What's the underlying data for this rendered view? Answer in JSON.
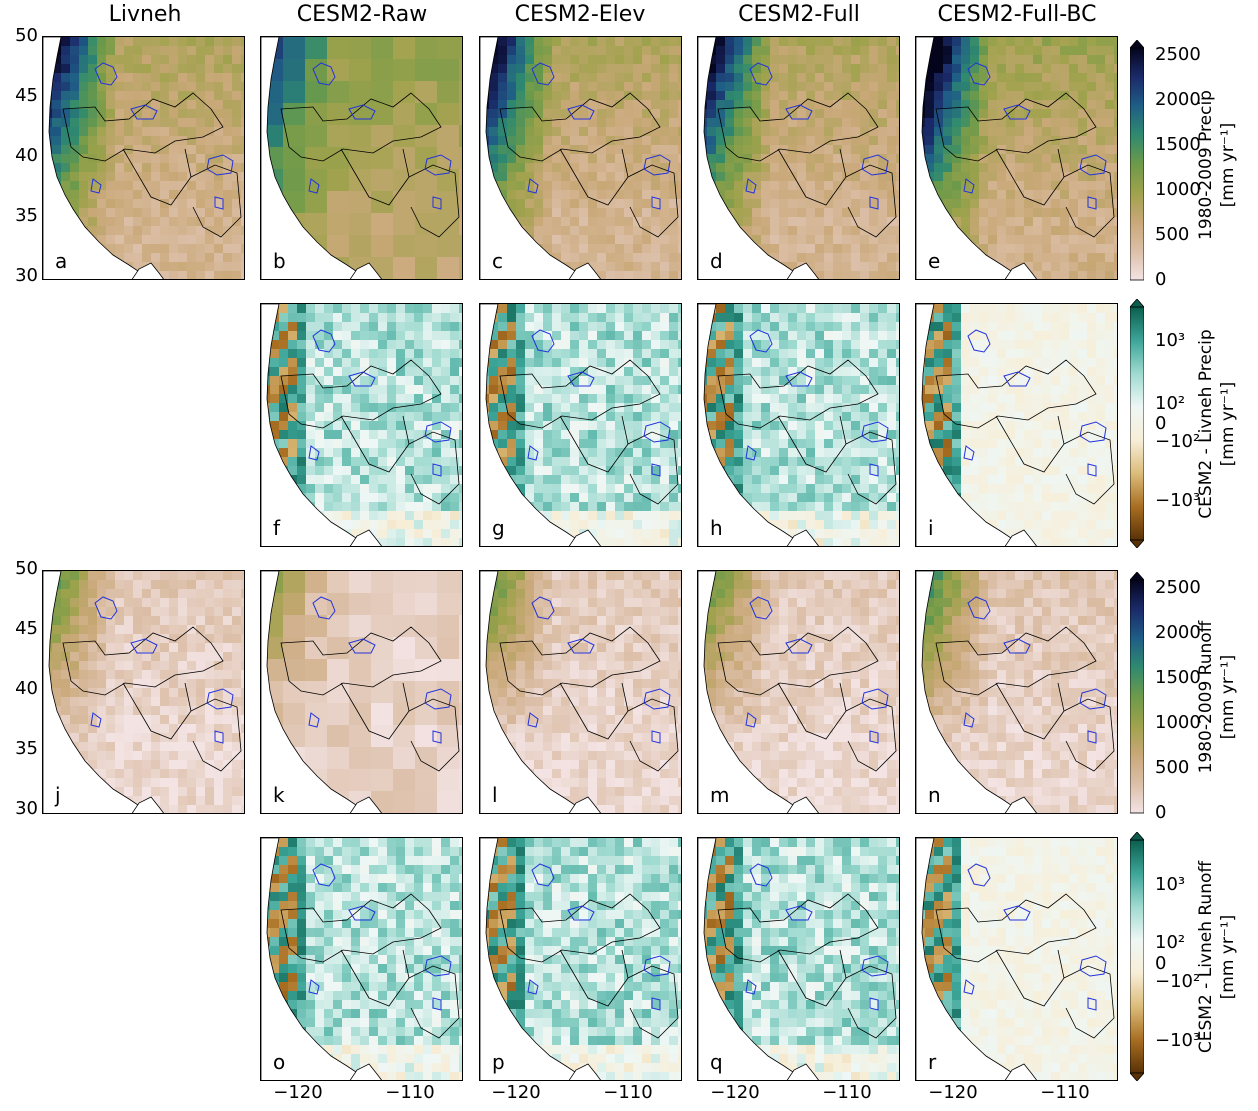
{
  "columns": [
    "Livneh",
    "CESM2-Raw",
    "CESM2-Elev",
    "CESM2-Full",
    "CESM2-Full-BC"
  ],
  "y_axis": {
    "ticks": [
      "50",
      "45",
      "40",
      "35",
      "30"
    ]
  },
  "x_axis": {
    "ticks": [
      "−120",
      "−110"
    ]
  },
  "panels": [
    {
      "label": "a",
      "row": 0,
      "col": 0,
      "field": "Precip",
      "scheme": "abs"
    },
    {
      "label": "b",
      "row": 0,
      "col": 1,
      "field": "Precip",
      "scheme": "abs"
    },
    {
      "label": "c",
      "row": 0,
      "col": 2,
      "field": "Precip",
      "scheme": "abs"
    },
    {
      "label": "d",
      "row": 0,
      "col": 3,
      "field": "Precip",
      "scheme": "abs"
    },
    {
      "label": "e",
      "row": 0,
      "col": 4,
      "field": "Precip",
      "scheme": "abs"
    },
    {
      "label": "f",
      "row": 1,
      "col": 1,
      "field": "Precip",
      "scheme": "diff"
    },
    {
      "label": "g",
      "row": 1,
      "col": 2,
      "field": "Precip",
      "scheme": "diff"
    },
    {
      "label": "h",
      "row": 1,
      "col": 3,
      "field": "Precip",
      "scheme": "diff"
    },
    {
      "label": "i",
      "row": 1,
      "col": 4,
      "field": "Precip",
      "scheme": "diff"
    },
    {
      "label": "j",
      "row": 2,
      "col": 0,
      "field": "Runoff",
      "scheme": "abs"
    },
    {
      "label": "k",
      "row": 2,
      "col": 1,
      "field": "Runoff",
      "scheme": "abs"
    },
    {
      "label": "l",
      "row": 2,
      "col": 2,
      "field": "Runoff",
      "scheme": "abs"
    },
    {
      "label": "m",
      "row": 2,
      "col": 3,
      "field": "Runoff",
      "scheme": "abs"
    },
    {
      "label": "n",
      "row": 2,
      "col": 4,
      "field": "Runoff",
      "scheme": "abs"
    },
    {
      "label": "o",
      "row": 3,
      "col": 1,
      "field": "Runoff",
      "scheme": "diff"
    },
    {
      "label": "p",
      "row": 3,
      "col": 2,
      "field": "Runoff",
      "scheme": "diff"
    },
    {
      "label": "q",
      "row": 3,
      "col": 3,
      "field": "Runoff",
      "scheme": "diff"
    },
    {
      "label": "r",
      "row": 3,
      "col": 4,
      "field": "Runoff",
      "scheme": "diff"
    }
  ],
  "colorbars": [
    {
      "title_line1": "1980-2009 Precip",
      "title_line2": "[mm yr⁻¹]",
      "ticks": [
        "2500",
        "2000",
        "1500",
        "1000",
        "500",
        "0"
      ]
    },
    {
      "title_line1": "CESM2 - Livneh Precip",
      "title_line2": "[mm yr⁻¹]",
      "ticks": [
        "10³",
        "10²",
        "0",
        "−10²",
        "−10³"
      ]
    },
    {
      "title_line1": "1980-2009 Runoff",
      "title_line2": "[mm yr⁻¹]",
      "ticks": [
        "2500",
        "2000",
        "1500",
        "1000",
        "500",
        "0"
      ]
    },
    {
      "title_line1": "CESM2 - Livneh Runoff",
      "title_line2": "[mm yr⁻¹]",
      "ticks": [
        "10³",
        "10²",
        "0",
        "−10²",
        "−10³"
      ]
    }
  ],
  "colors": {
    "abs_scale": [
      "#f3e3e3",
      "#dcbfa8",
      "#c9a878",
      "#9fa24c",
      "#6d9a4a",
      "#2f8a6f",
      "#1f5d86",
      "#1b2a6a",
      "#04041c"
    ],
    "diff_scale": [
      "#5a3206",
      "#a86e22",
      "#dcbc7a",
      "#f7eed8",
      "#eef7f5",
      "#9fdad0",
      "#3ca598",
      "#0b5e4d"
    ],
    "land_low_abs": "#d8b49a",
    "runoff_bg": "#f4e2e2",
    "border": "#000000",
    "basins": "#2233dd"
  }
}
